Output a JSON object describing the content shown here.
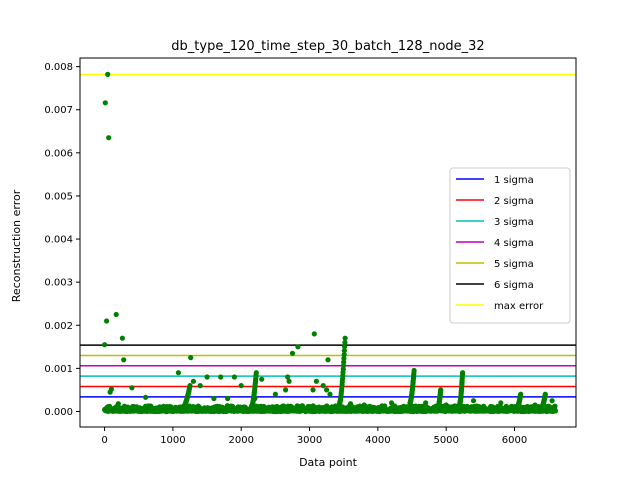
{
  "chart_data": {
    "type": "scatter",
    "title": "db_type_120_time_step_30_batch_128_node_32",
    "xlabel": "Data point",
    "ylabel": "Reconstruction error",
    "xlim": [
      -360,
      6900
    ],
    "ylim": [
      -0.00036,
      0.0082
    ],
    "xticks": [
      0,
      1000,
      2000,
      3000,
      4000,
      5000,
      6000
    ],
    "xtick_labels": [
      "0",
      "1000",
      "2000",
      "3000",
      "4000",
      "5000",
      "6000"
    ],
    "yticks": [
      0.0,
      0.001,
      0.002,
      0.003,
      0.004,
      0.005,
      0.006,
      0.007,
      0.008
    ],
    "ytick_labels": [
      "0.000",
      "0.001",
      "0.002",
      "0.003",
      "0.004",
      "0.005",
      "0.006",
      "0.007",
      "0.008"
    ],
    "grid": false,
    "legend_position": "center-right",
    "point_color": "#008000",
    "series": [
      {
        "name": "Reconstruction error",
        "kind": "points",
        "base_points": [
          [
            0,
            0.00155
          ],
          [
            10,
            0.00716
          ],
          [
            30,
            0.0021
          ],
          [
            45,
            0.00782
          ],
          [
            60,
            0.00635
          ],
          [
            80,
            0.00045
          ],
          [
            100,
            0.00052
          ],
          [
            170,
            0.00225
          ],
          [
            200,
            0.00018
          ],
          [
            260,
            0.0017
          ],
          [
            280,
            0.0012
          ],
          [
            400,
            0.00055
          ],
          [
            600,
            0.00033
          ],
          [
            1080,
            0.0009
          ],
          [
            1260,
            0.00125
          ],
          [
            1300,
            0.0007
          ],
          [
            1400,
            0.0006
          ],
          [
            1500,
            0.0008
          ],
          [
            1700,
            0.0008
          ],
          [
            1900,
            0.0008
          ],
          [
            2000,
            0.0006
          ],
          [
            2300,
            0.00075
          ],
          [
            2650,
            0.0005
          ],
          [
            2750,
            0.00135
          ],
          [
            2830,
            0.0015
          ],
          [
            2700,
            0.0007
          ],
          [
            2680,
            0.0008
          ],
          [
            3070,
            0.0018
          ],
          [
            3270,
            0.0012
          ],
          [
            3250,
            0.0005
          ],
          [
            3050,
            0.0005
          ],
          [
            3300,
            0.0004
          ],
          [
            3100,
            0.0007
          ],
          [
            3200,
            0.0006
          ],
          [
            2500,
            0.0004
          ],
          [
            2200,
            0.0003
          ],
          [
            1800,
            0.0003
          ],
          [
            1600,
            0.0003
          ],
          [
            3600,
            0.00018
          ],
          [
            3800,
            0.00015
          ],
          [
            4200,
            0.0002
          ],
          [
            4700,
            0.0002
          ],
          [
            5000,
            0.00015
          ],
          [
            5400,
            0.00025
          ],
          [
            5800,
            0.0002
          ],
          [
            6300,
            0.00015
          ],
          [
            6550,
            0.00025
          ]
        ],
        "noise_range": [
          0,
          6600
        ],
        "noise_level": 0.00012,
        "spikes": [
          {
            "x_start": 3440,
            "x_end": 3520,
            "y_start": 0.0002,
            "y_end": 0.0017
          },
          {
            "x_start": 4470,
            "x_end": 4530,
            "y_start": 0.0002,
            "y_end": 0.00095
          },
          {
            "x_start": 5200,
            "x_end": 5240,
            "y_start": 0.0002,
            "y_end": 0.0009
          },
          {
            "x_start": 2150,
            "x_end": 2220,
            "y_start": 0.0001,
            "y_end": 0.0009
          },
          {
            "x_start": 1150,
            "x_end": 1250,
            "y_start": 0.0001,
            "y_end": 0.0006
          },
          {
            "x_start": 4880,
            "x_end": 4920,
            "y_start": 0.0001,
            "y_end": 0.0005
          },
          {
            "x_start": 6040,
            "x_end": 6090,
            "y_start": 0.0001,
            "y_end": 0.0004
          },
          {
            "x_start": 6400,
            "x_end": 6450,
            "y_start": 0.0001,
            "y_end": 0.0004
          }
        ]
      }
    ],
    "lines": [
      {
        "name": "1 sigma",
        "y": 0.00034,
        "color": "#0000ff"
      },
      {
        "name": "2 sigma",
        "y": 0.00058,
        "color": "#ff0000"
      },
      {
        "name": "3 sigma",
        "y": 0.00082,
        "color": "#00bfbf"
      },
      {
        "name": "4 sigma",
        "y": 0.00106,
        "color": "#bf00bf"
      },
      {
        "name": "5 sigma",
        "y": 0.0013,
        "color": "#bfbf00"
      },
      {
        "name": "6 sigma",
        "y": 0.00154,
        "color": "#000000"
      },
      {
        "name": "max error",
        "y": 0.00782,
        "color": "#ffff00"
      }
    ]
  }
}
